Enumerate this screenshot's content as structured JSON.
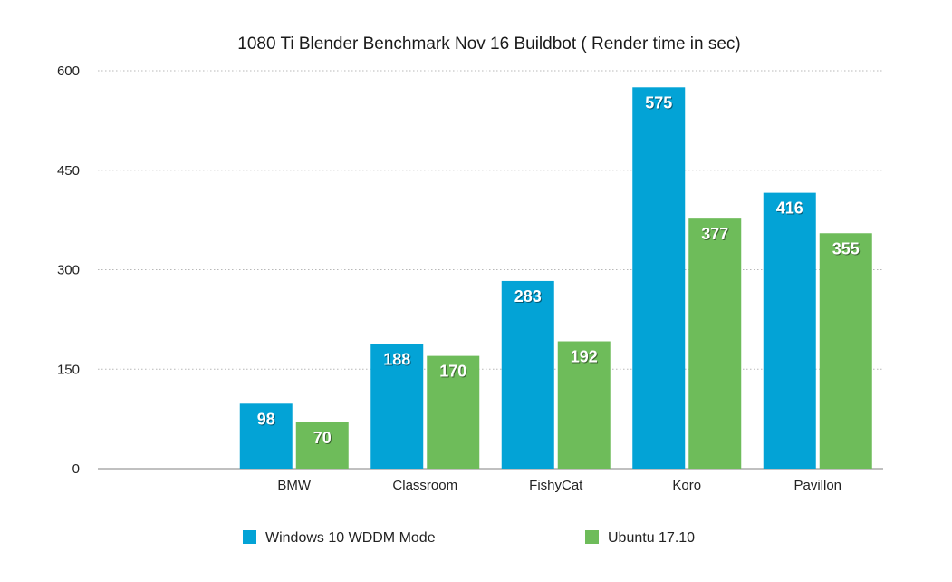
{
  "chart_data": {
    "type": "bar",
    "title": "1080 Ti Blender Benchmark Nov 16 Buildbot ( Render time in sec)",
    "categories": [
      "",
      "BMW",
      "Classroom",
      "FishyCat",
      "Koro",
      "Pavillon"
    ],
    "series": [
      {
        "name": "Windows 10 WDDM Mode",
        "color": "#03a3d6",
        "values": [
          null,
          98,
          188,
          283,
          575,
          416
        ]
      },
      {
        "name": "Ubuntu 17.10",
        "color": "#6ebc5a",
        "values": [
          null,
          70,
          170,
          192,
          377,
          355
        ]
      }
    ],
    "ylim": [
      0,
      600
    ],
    "yticks": [
      0,
      150,
      300,
      450,
      600
    ],
    "xlabel": "",
    "ylabel": "",
    "grid": true,
    "legend": "bottom"
  }
}
